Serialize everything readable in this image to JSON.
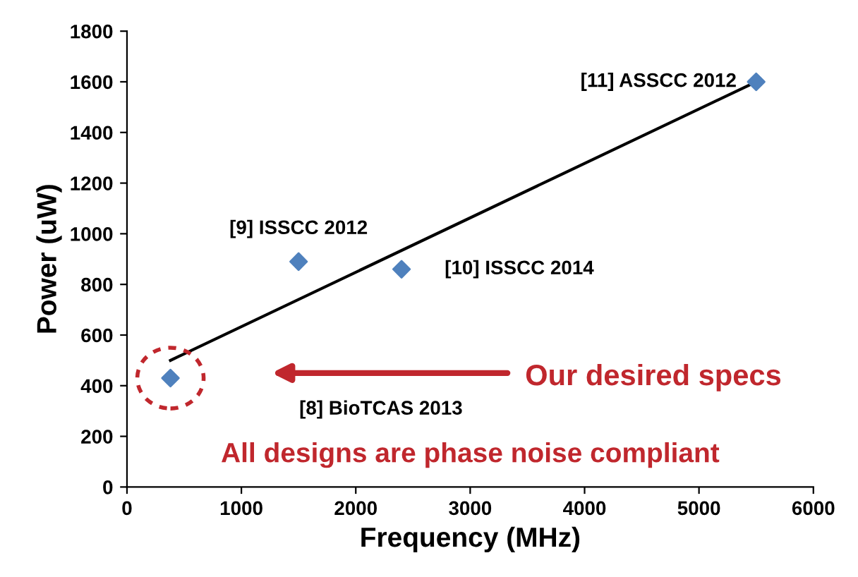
{
  "chart_data": {
    "type": "scatter",
    "xlabel": "Frequency (MHz)",
    "ylabel": "Power (uW)",
    "series": [
      {
        "color": "#4f81bd",
        "marker": "diamond",
        "x": [
          380,
          1500,
          2400,
          5500
        ],
        "values": [
          430,
          890,
          860,
          1600
        ]
      },
      {
        "type": "line",
        "color": "#000000",
        "marker": "none",
        "x": [
          380,
          5500
        ],
        "values": [
          500,
          1600
        ]
      }
    ],
    "xlim": [
      0,
      6000
    ],
    "ylim": [
      0,
      1800
    ],
    "xticks": [
      0,
      1000,
      2000,
      3000,
      4000,
      5000,
      6000
    ],
    "yticks": [
      0,
      200,
      400,
      600,
      800,
      1000,
      1200,
      1400,
      1600,
      1800
    ],
    "grid": false,
    "legend": false,
    "annotations": [
      "[8] BioTCAS 2013",
      {
        "text": "[9] ISSCC 2012",
        "x": 1500,
        "y": 890
      },
      {
        "text": "[10] ISSCC 2014",
        "x": 2400,
        "y": 860
      },
      {
        "text": "[11] ASSCC 2012",
        "x": 5500,
        "y": 1600
      },
      "Our desired specs",
      "All designs are phase noise compliant"
    ]
  }
}
